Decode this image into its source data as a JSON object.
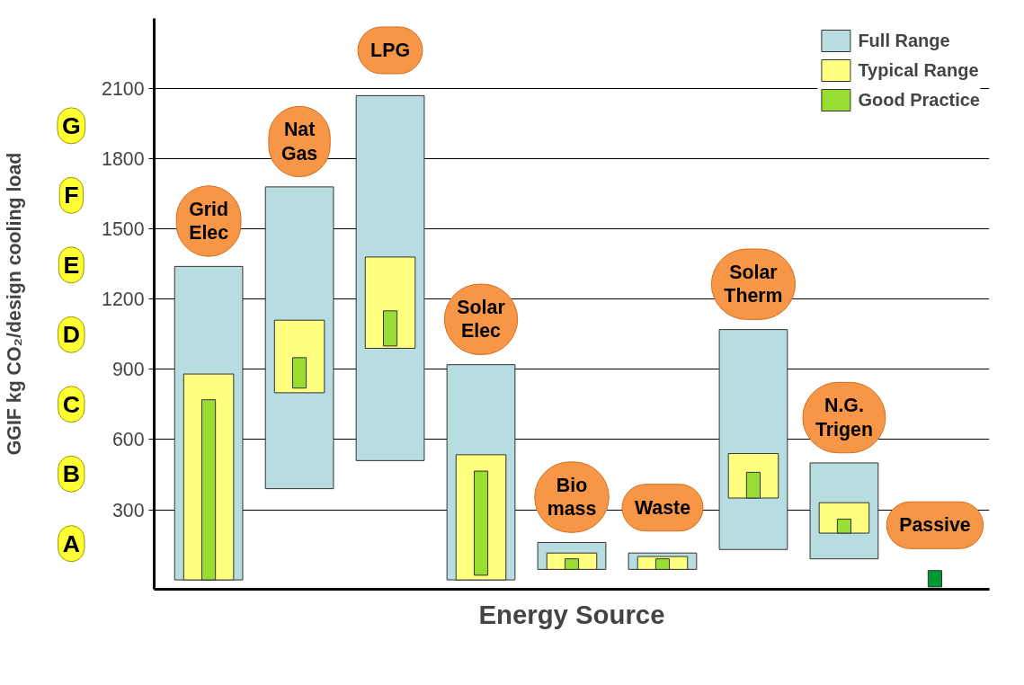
{
  "chart_data": {
    "type": "bar",
    "xlabel": "Energy Source",
    "ylabel": "GGIF kg CO₂/design cooling load",
    "categories": [
      "Grid Elec",
      "Nat Gas",
      "LPG",
      "Solar Elec",
      "Bio mass",
      "Waste",
      "Solar Therm",
      "N.G. Trigen",
      "Passive"
    ],
    "series": [
      {
        "name": "Full Range",
        "color": "#b7dde0",
        "base": [
          0,
          390,
          510,
          0,
          45,
          45,
          130,
          90,
          null
        ],
        "values": [
          1340,
          1290,
          1560,
          920,
          115,
          70,
          940,
          410,
          null
        ]
      },
      {
        "name": "Typical Range",
        "color": "#ffff80",
        "base": [
          0,
          800,
          990,
          0,
          45,
          45,
          350,
          200,
          null
        ],
        "values": [
          880,
          310,
          390,
          535,
          70,
          55,
          190,
          130,
          null
        ]
      },
      {
        "name": "Good Practice",
        "color": "#99dd33",
        "colors": [
          null,
          null,
          null,
          null,
          null,
          null,
          null,
          null,
          "#009933"
        ],
        "base": [
          0,
          820,
          1000,
          20,
          45,
          45,
          350,
          200,
          -30
        ],
        "values": [
          770,
          130,
          150,
          445,
          45,
          45,
          110,
          60,
          70
        ]
      }
    ],
    "ylim": [
      -40,
      2400
    ],
    "yticks": [
      300,
      600,
      900,
      1200,
      1500,
      1800,
      2100
    ],
    "annotations": [
      "A",
      "B",
      "C",
      "D",
      "E",
      "F",
      "G"
    ],
    "grid": "y",
    "legend": "top right",
    "tick_labels": "y"
  }
}
